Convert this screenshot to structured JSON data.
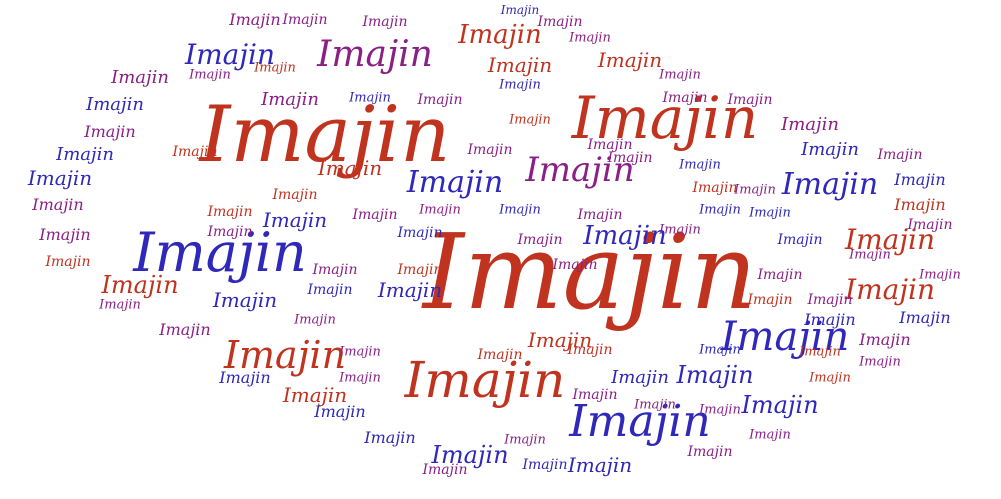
{
  "word": "Imajin",
  "colors": {
    "red": "#c0331f",
    "blue": "#2f28b8",
    "purple": "#8a1f86"
  }
}
